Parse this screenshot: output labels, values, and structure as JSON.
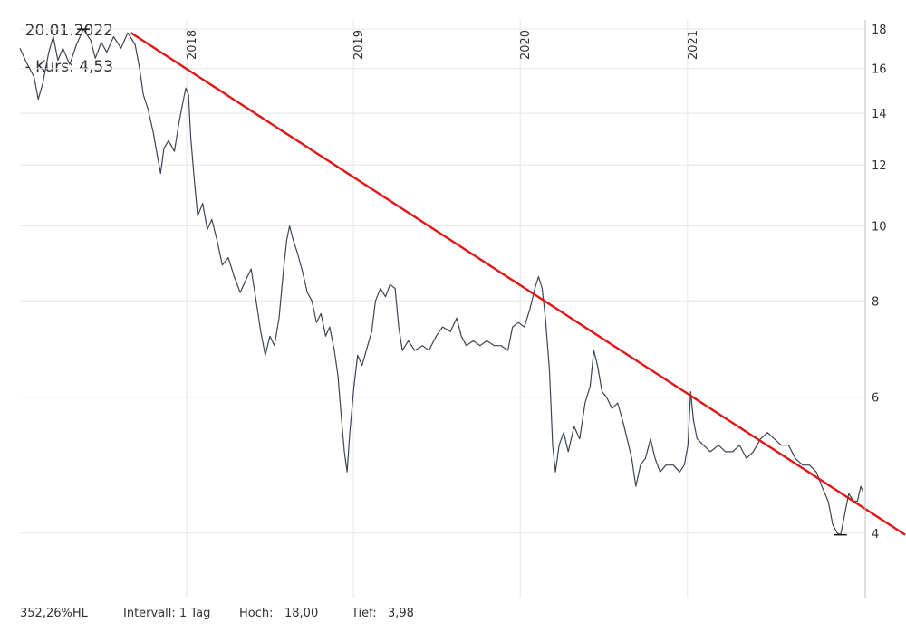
{
  "header": {
    "date": "20.01.2022",
    "kurs_text": "- Kurs: 4,53"
  },
  "footer": {
    "scale_label": "352,26%HL",
    "interval": "Intervall: 1 Tag",
    "hoch_label": "Hoch:",
    "hoch_value": "18,00",
    "tief_label": "Tief:",
    "tief_value": "3,98"
  },
  "colors": {
    "price_line": "#3d4550",
    "trend_line": "#e01515",
    "grid": "#e6e6e6",
    "axis": "#bbbbbb"
  },
  "chart_data": {
    "type": "line",
    "y_scale": "log",
    "ylim": [
      3.3,
      18.5
    ],
    "y_ticks": [
      4,
      6,
      8,
      10,
      12,
      14,
      16,
      18
    ],
    "x_ticks": [
      "2018",
      "2019",
      "2020",
      "2021"
    ],
    "x_range": [
      "2017-01-01",
      "2022-01-25"
    ],
    "grid": true,
    "series": [
      {
        "points": [
          [
            "2017-01-01",
            17.0
          ],
          [
            "2017-01-15",
            16.3
          ],
          [
            "2017-02-01",
            15.6
          ],
          [
            "2017-02-10",
            14.6
          ],
          [
            "2017-02-20",
            15.3
          ],
          [
            "2017-03-05",
            16.8
          ],
          [
            "2017-03-15",
            17.6
          ],
          [
            "2017-03-25",
            16.4
          ],
          [
            "2017-04-05",
            17.0
          ],
          [
            "2017-04-20",
            16.2
          ],
          [
            "2017-05-05",
            17.2
          ],
          [
            "2017-05-20",
            18.0
          ],
          [
            "2017-06-05",
            17.4
          ],
          [
            "2017-06-15",
            16.5
          ],
          [
            "2017-06-28",
            17.3
          ],
          [
            "2017-07-10",
            16.8
          ],
          [
            "2017-07-25",
            17.6
          ],
          [
            "2017-08-10",
            17.0
          ],
          [
            "2017-08-25",
            17.8
          ],
          [
            "2017-09-10",
            17.2
          ],
          [
            "2017-09-20",
            16.0
          ],
          [
            "2017-09-28",
            14.8
          ],
          [
            "2017-10-08",
            14.2
          ],
          [
            "2017-10-20",
            13.2
          ],
          [
            "2017-10-28",
            12.4
          ],
          [
            "2017-11-05",
            11.7
          ],
          [
            "2017-11-12",
            12.6
          ],
          [
            "2017-11-22",
            12.9
          ],
          [
            "2017-12-05",
            12.5
          ],
          [
            "2017-12-15",
            13.6
          ],
          [
            "2017-12-24",
            14.5
          ],
          [
            "2017-12-30",
            15.1
          ],
          [
            "2018-01-05",
            14.8
          ],
          [
            "2018-01-10",
            13.0
          ],
          [
            "2018-01-18",
            11.4
          ],
          [
            "2018-01-25",
            10.3
          ],
          [
            "2018-02-05",
            10.7
          ],
          [
            "2018-02-15",
            9.9
          ],
          [
            "2018-02-25",
            10.2
          ],
          [
            "2018-03-08",
            9.6
          ],
          [
            "2018-03-20",
            8.9
          ],
          [
            "2018-04-02",
            9.1
          ],
          [
            "2018-04-15",
            8.6
          ],
          [
            "2018-04-28",
            8.2
          ],
          [
            "2018-05-10",
            8.5
          ],
          [
            "2018-05-22",
            8.8
          ],
          [
            "2018-06-02",
            8.0
          ],
          [
            "2018-06-12",
            7.3
          ],
          [
            "2018-06-22",
            6.8
          ],
          [
            "2018-07-02",
            7.2
          ],
          [
            "2018-07-12",
            7.0
          ],
          [
            "2018-07-22",
            7.6
          ],
          [
            "2018-08-01",
            8.8
          ],
          [
            "2018-08-08",
            9.6
          ],
          [
            "2018-08-14",
            10.0
          ],
          [
            "2018-08-22",
            9.6
          ],
          [
            "2018-09-01",
            9.2
          ],
          [
            "2018-09-12",
            8.7
          ],
          [
            "2018-09-22",
            8.2
          ],
          [
            "2018-10-02",
            8.0
          ],
          [
            "2018-10-12",
            7.5
          ],
          [
            "2018-10-22",
            7.7
          ],
          [
            "2018-11-01",
            7.2
          ],
          [
            "2018-11-10",
            7.4
          ],
          [
            "2018-11-20",
            6.9
          ],
          [
            "2018-11-28",
            6.4
          ],
          [
            "2018-12-05",
            5.7
          ],
          [
            "2018-12-12",
            5.1
          ],
          [
            "2018-12-18",
            4.8
          ],
          [
            "2018-12-24",
            5.4
          ],
          [
            "2019-01-02",
            6.2
          ],
          [
            "2019-01-10",
            6.8
          ],
          [
            "2019-01-20",
            6.6
          ],
          [
            "2019-02-01",
            7.0
          ],
          [
            "2019-02-10",
            7.3
          ],
          [
            "2019-02-18",
            8.0
          ],
          [
            "2019-03-01",
            8.3
          ],
          [
            "2019-03-12",
            8.1
          ],
          [
            "2019-03-22",
            8.4
          ],
          [
            "2019-04-02",
            8.3
          ],
          [
            "2019-04-10",
            7.4
          ],
          [
            "2019-04-18",
            6.9
          ],
          [
            "2019-05-01",
            7.1
          ],
          [
            "2019-05-15",
            6.9
          ],
          [
            "2019-06-01",
            7.0
          ],
          [
            "2019-06-15",
            6.9
          ],
          [
            "2019-07-01",
            7.2
          ],
          [
            "2019-07-15",
            7.4
          ],
          [
            "2019-08-01",
            7.3
          ],
          [
            "2019-08-15",
            7.6
          ],
          [
            "2019-08-25",
            7.2
          ],
          [
            "2019-09-05",
            7.0
          ],
          [
            "2019-09-20",
            7.1
          ],
          [
            "2019-10-05",
            7.0
          ],
          [
            "2019-10-20",
            7.1
          ],
          [
            "2019-11-05",
            7.0
          ],
          [
            "2019-11-20",
            7.0
          ],
          [
            "2019-12-05",
            6.9
          ],
          [
            "2019-12-15",
            7.4
          ],
          [
            "2019-12-28",
            7.5
          ],
          [
            "2020-01-10",
            7.4
          ],
          [
            "2020-01-22",
            7.8
          ],
          [
            "2020-02-02",
            8.3
          ],
          [
            "2020-02-10",
            8.6
          ],
          [
            "2020-02-18",
            8.3
          ],
          [
            "2020-02-25",
            7.6
          ],
          [
            "2020-03-05",
            6.5
          ],
          [
            "2020-03-12",
            5.2
          ],
          [
            "2020-03-18",
            4.8
          ],
          [
            "2020-03-26",
            5.2
          ],
          [
            "2020-04-05",
            5.4
          ],
          [
            "2020-04-15",
            5.1
          ],
          [
            "2020-04-28",
            5.5
          ],
          [
            "2020-05-10",
            5.3
          ],
          [
            "2020-05-22",
            5.9
          ],
          [
            "2020-06-02",
            6.2
          ],
          [
            "2020-06-10",
            6.9
          ],
          [
            "2020-06-18",
            6.6
          ],
          [
            "2020-06-28",
            6.1
          ],
          [
            "2020-07-08",
            6.0
          ],
          [
            "2020-07-20",
            5.8
          ],
          [
            "2020-08-01",
            5.9
          ],
          [
            "2020-08-12",
            5.6
          ],
          [
            "2020-08-22",
            5.3
          ],
          [
            "2020-09-01",
            5.0
          ],
          [
            "2020-09-10",
            4.6
          ],
          [
            "2020-09-20",
            4.9
          ],
          [
            "2020-10-01",
            5.0
          ],
          [
            "2020-10-12",
            5.3
          ],
          [
            "2020-10-22",
            5.0
          ],
          [
            "2020-11-02",
            4.8
          ],
          [
            "2020-11-15",
            4.9
          ],
          [
            "2020-12-01",
            4.9
          ],
          [
            "2020-12-15",
            4.8
          ],
          [
            "2020-12-25",
            4.9
          ],
          [
            "2021-01-02",
            5.2
          ],
          [
            "2021-01-08",
            6.1
          ],
          [
            "2021-01-14",
            5.6
          ],
          [
            "2021-01-22",
            5.3
          ],
          [
            "2021-02-05",
            5.2
          ],
          [
            "2021-02-20",
            5.1
          ],
          [
            "2021-03-10",
            5.2
          ],
          [
            "2021-03-25",
            5.1
          ],
          [
            "2021-04-10",
            5.1
          ],
          [
            "2021-04-25",
            5.2
          ],
          [
            "2021-05-10",
            5.0
          ],
          [
            "2021-05-25",
            5.1
          ],
          [
            "2021-06-10",
            5.3
          ],
          [
            "2021-06-25",
            5.4
          ],
          [
            "2021-07-10",
            5.3
          ],
          [
            "2021-07-25",
            5.2
          ],
          [
            "2021-08-10",
            5.2
          ],
          [
            "2021-08-25",
            5.0
          ],
          [
            "2021-09-10",
            4.9
          ],
          [
            "2021-09-25",
            4.9
          ],
          [
            "2021-10-10",
            4.8
          ],
          [
            "2021-10-22",
            4.6
          ],
          [
            "2021-11-05",
            4.4
          ],
          [
            "2021-11-15",
            4.1
          ],
          [
            "2021-11-25",
            4.0
          ],
          [
            "2021-12-02",
            3.98
          ],
          [
            "2021-12-10",
            4.2
          ],
          [
            "2021-12-20",
            4.5
          ],
          [
            "2021-12-30",
            4.4
          ],
          [
            "2022-01-08",
            4.4
          ],
          [
            "2022-01-15",
            4.6
          ],
          [
            "2022-01-20",
            4.53
          ]
        ]
      },
      {
        "points": [
          [
            "2017-09-01",
            17.8
          ],
          [
            "2022-01-25",
            4.3
          ]
        ]
      }
    ]
  }
}
